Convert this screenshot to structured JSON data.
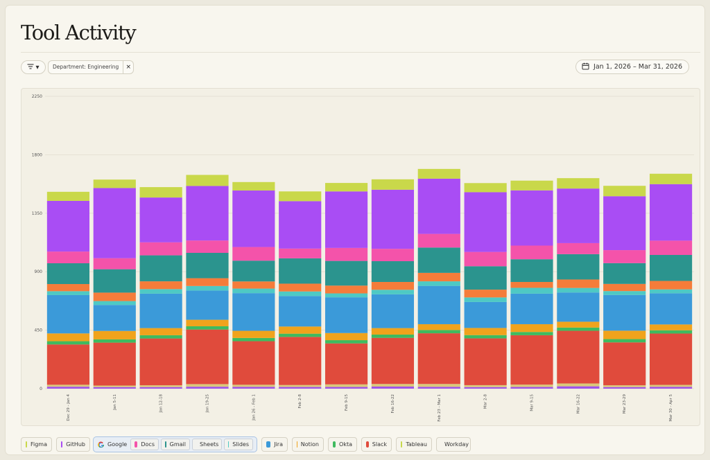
{
  "page": {
    "title": "Tool Activity",
    "filter_chip": "Department: Engineering",
    "chip_close": "×",
    "filter_caret": "▾",
    "date_range": "Jan 1, 2026 – Mar 31, 2026"
  },
  "icons": {
    "filter": "filter-lines-icon",
    "calendar": "calendar-icon",
    "close": "close-icon",
    "google": "google-g-icon"
  },
  "legend": {
    "items": [
      {
        "label": "Figma",
        "color": "#c9d84a"
      },
      {
        "label": "GitHub",
        "color": "#a94df4"
      },
      {
        "label": "Jira",
        "color": "#3b9ad9"
      },
      {
        "label": "Notion",
        "color": "#f0a31c"
      },
      {
        "label": "Okta",
        "color": "#3fba5f"
      },
      {
        "label": "Slack",
        "color": "#e04b3c"
      },
      {
        "label": "Tableau",
        "color": "#c7d94c"
      },
      {
        "label": "Workday",
        "color": "#a054e8"
      }
    ],
    "google": {
      "label": "Google",
      "items": [
        {
          "label": "Docs",
          "color": "#f453aa"
        },
        {
          "label": "Gmail",
          "color": "#2b948e"
        },
        {
          "label": "Sheets",
          "color": "#f57c3a"
        },
        {
          "label": "Slides",
          "color": "#4ec9c4"
        }
      ]
    }
  },
  "chart_data": {
    "type": "bar",
    "stacked": true,
    "y_ticks": [
      0,
      450,
      900,
      1350,
      1800,
      2250
    ],
    "ylim": [
      0,
      2250
    ],
    "grid": true,
    "legend_position": "bottom",
    "categories": [
      "Dec 29 - Jan 4",
      "Jan 5-11",
      "Jan 12-18",
      "Jan 19-25",
      "Jan 26 - Feb 1",
      "Feb 2-8",
      "Feb 9-15",
      "Feb 16-22",
      "Feb 23 - Mar 1",
      "Mar 2-8",
      "Mar 9-15",
      "Mar 16-22",
      "Mar 23-29",
      "Mar 30 - Apr 5"
    ],
    "series": [
      {
        "name": "Workday",
        "color": "#a054e8",
        "values": [
          15,
          12,
          12,
          15,
          14,
          13,
          13,
          16,
          14,
          12,
          13,
          18,
          12,
          14
        ]
      },
      {
        "name": "Tableau",
        "color": "#d9c97a",
        "values": [
          15,
          12,
          14,
          20,
          16,
          15,
          20,
          20,
          22,
          15,
          18,
          22,
          14,
          15
        ]
      },
      {
        "name": "Slack",
        "color": "#e04b3c",
        "values": [
          310,
          330,
          360,
          420,
          335,
          370,
          315,
          355,
          390,
          360,
          380,
          405,
          330,
          395
        ]
      },
      {
        "name": "Okta",
        "color": "#3fba5f",
        "values": [
          25,
          25,
          25,
          25,
          25,
          25,
          25,
          25,
          25,
          25,
          25,
          25,
          25,
          25
        ]
      },
      {
        "name": "Notion",
        "color": "#f0a31c",
        "values": [
          60,
          65,
          55,
          50,
          55,
          55,
          55,
          50,
          45,
          55,
          60,
          45,
          65,
          45
        ]
      },
      {
        "name": "Jira",
        "color": "#3b9ad9",
        "values": [
          295,
          200,
          265,
          225,
          290,
          235,
          275,
          260,
          295,
          200,
          235,
          225,
          275,
          240
        ]
      },
      {
        "name": "Slides",
        "color": "#4ec9c4",
        "values": [
          30,
          30,
          35,
          35,
          35,
          35,
          30,
          35,
          35,
          35,
          45,
          35,
          30,
          30
        ]
      },
      {
        "name": "Sheets",
        "color": "#f57c3a",
        "values": [
          55,
          65,
          60,
          60,
          55,
          60,
          60,
          60,
          65,
          60,
          45,
          65,
          55,
          65
        ]
      },
      {
        "name": "Gmail",
        "color": "#2b948e",
        "values": [
          160,
          180,
          200,
          195,
          160,
          195,
          190,
          160,
          195,
          180,
          175,
          195,
          160,
          200
        ]
      },
      {
        "name": "Docs",
        "color": "#f453aa",
        "values": [
          90,
          85,
          100,
          95,
          105,
          75,
          100,
          95,
          105,
          110,
          105,
          85,
          100,
          110
        ]
      },
      {
        "name": "GitHub",
        "color": "#a94df4",
        "values": [
          390,
          540,
          345,
          420,
          435,
          365,
          435,
          455,
          425,
          460,
          425,
          420,
          415,
          435
        ]
      },
      {
        "name": "Figma",
        "color": "#c9d84a",
        "values": [
          70,
          65,
          80,
          85,
          65,
          75,
          65,
          80,
          75,
          70,
          75,
          80,
          80,
          80
        ]
      }
    ]
  }
}
